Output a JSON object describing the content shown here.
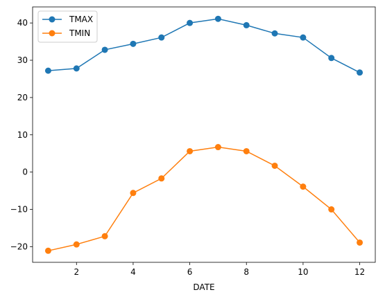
{
  "chart_data": {
    "type": "line",
    "title": "",
    "xlabel": "DATE",
    "ylabel": "",
    "x": [
      1,
      2,
      3,
      4,
      5,
      6,
      7,
      8,
      9,
      10,
      11,
      12
    ],
    "xlim": [
      0.45,
      12.55
    ],
    "ylim": [
      -24.2,
      44.3
    ],
    "xticks": [
      2,
      4,
      6,
      8,
      10,
      12
    ],
    "yticks": [
      -20,
      -10,
      0,
      10,
      20,
      30,
      40
    ],
    "grid": false,
    "legend_position": "top-left",
    "markers": "circle",
    "series": [
      {
        "name": "TMAX",
        "color": "#1f77b4",
        "values": [
          27.2,
          27.8,
          32.8,
          34.4,
          36.1,
          40.0,
          41.1,
          39.4,
          37.2,
          36.1,
          30.6,
          26.7
        ]
      },
      {
        "name": "TMIN",
        "color": "#ff7f0e",
        "values": [
          -21.1,
          -19.4,
          -17.2,
          -5.6,
          -1.7,
          5.6,
          6.7,
          5.6,
          1.7,
          -3.9,
          -10.0,
          -18.9
        ]
      }
    ]
  }
}
